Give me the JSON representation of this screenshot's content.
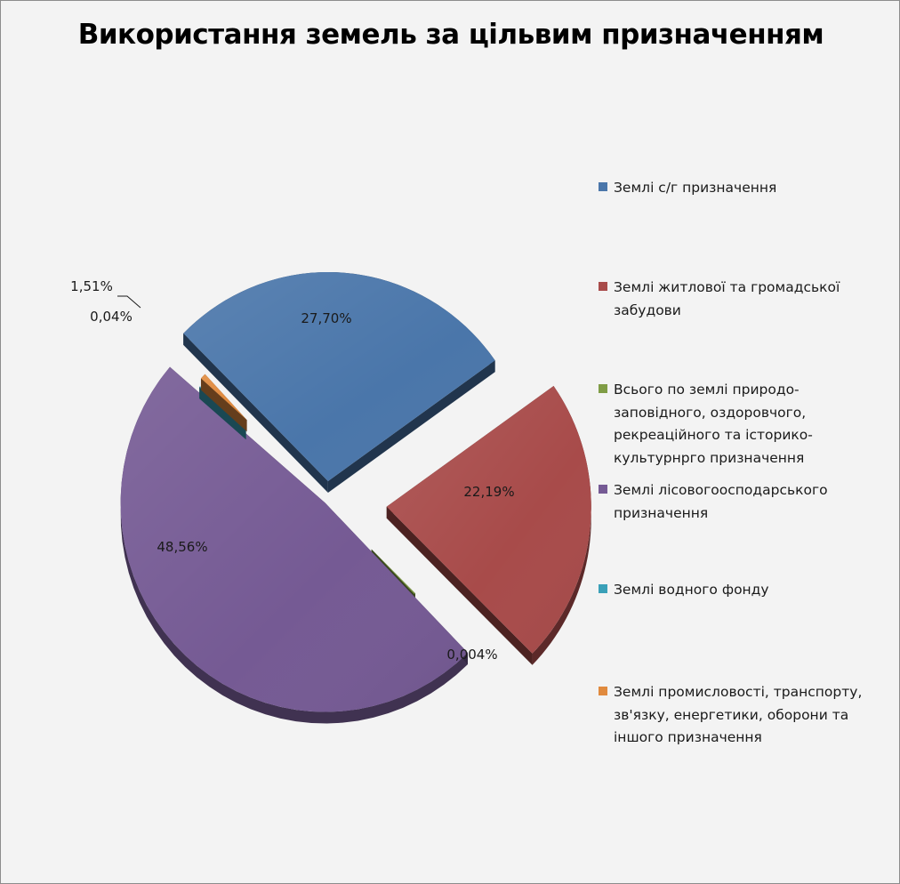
{
  "chart_data": {
    "type": "pie",
    "title": "Використання земель за цільвим призначенням",
    "categories": [
      "Землі с/г призначення",
      "Землі житлової та громадської забудови",
      "Всього по землі природо-заповідного, оздоровчого, рекреаційного та історико-культурнрго призначення",
      "Землі лісовогоосподарського призначення",
      "Землі водного фонду",
      "Землі промисловості, транспорту, зв'язку, енергетики, оборони та іншого призначення"
    ],
    "values": [
      27.7,
      22.19,
      0.004,
      48.56,
      0.04,
      1.51
    ],
    "labels": [
      "27,70%",
      "22,19%",
      "0,004%",
      "48,56%",
      "0,04%",
      "1,51%"
    ],
    "colors": [
      "#4a76aa",
      "#a84b4a",
      "#7f9c45",
      "#755a94",
      "#3aa0b8",
      "#e08a3e"
    ],
    "legend_position": "right",
    "exploded": true,
    "style": "3d"
  },
  "legend": {
    "items": [
      {
        "text": "Землі с/г призначення",
        "color": "#4a76aa"
      },
      {
        "text": "Землі житлової та громадської забудови",
        "color": "#a84b4a"
      },
      {
        "text": "Всього по землі природо-заповідного, оздоровчого, рекреаційного та історико-культурнрго призначення",
        "color": "#7f9c45"
      },
      {
        "text": "Землі лісовогоосподарського призначення",
        "color": "#755a94"
      },
      {
        "text": "Землі водного фонду",
        "color": "#3aa0b8"
      },
      {
        "text": "Землі промисловості, транспорту, зв'язку, енергетики, оборони та іншого призначення",
        "color": "#e08a3e"
      }
    ]
  }
}
